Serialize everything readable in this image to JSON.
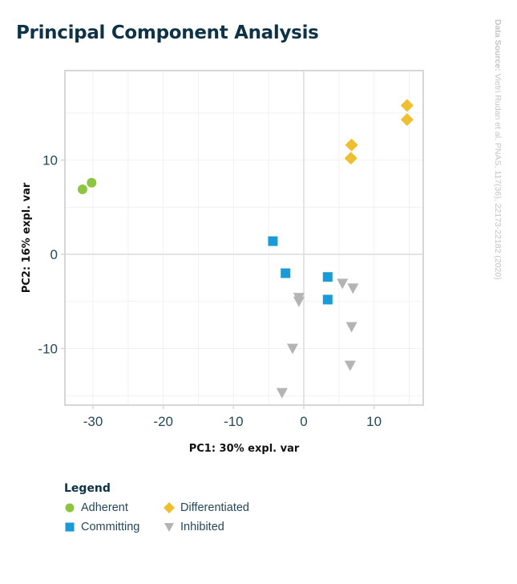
{
  "title": "Principal Component Analysis",
  "source": {
    "label": "Data Source:",
    "text": "Vietri Rudan et al. PNAS, 117(36), 22173-22182 (2020)"
  },
  "legend": {
    "title": "Legend",
    "items": [
      {
        "name": "Adherent",
        "color": "#8cc63f",
        "marker": "circle-icon"
      },
      {
        "name": "Differentiated",
        "color": "#f0bf2f",
        "marker": "diamond-icon"
      },
      {
        "name": "Committing",
        "color": "#1a9bd7",
        "marker": "square-icon"
      },
      {
        "name": "Inhibited",
        "color": "#b4b4b4",
        "marker": "triangle-down-icon"
      }
    ]
  },
  "chart_data": {
    "type": "scatter",
    "title": "Principal Component Analysis",
    "xlabel": "PC1: 30% expl. var",
    "ylabel": "PC2: 16% expl. var",
    "xlim": [
      -34,
      17
    ],
    "ylim": [
      -16,
      19.5
    ],
    "xticks": [
      -30,
      -20,
      -10,
      0,
      10
    ],
    "yticks": [
      -10,
      0,
      10
    ],
    "grid": true,
    "series": [
      {
        "name": "Adherent",
        "color": "#8cc63f",
        "marker": "circle",
        "points": [
          [
            -31.5,
            6.9
          ],
          [
            -30.2,
            7.6
          ]
        ]
      },
      {
        "name": "Committing",
        "color": "#1a9bd7",
        "marker": "square",
        "points": [
          [
            -4.4,
            1.4
          ],
          [
            -2.6,
            -2.0
          ],
          [
            3.4,
            -2.4
          ],
          [
            3.4,
            -4.8
          ]
        ]
      },
      {
        "name": "Differentiated",
        "color": "#f0bf2f",
        "marker": "diamond",
        "points": [
          [
            14.7,
            15.8
          ],
          [
            14.7,
            14.3
          ],
          [
            6.8,
            11.6
          ],
          [
            6.7,
            10.2
          ]
        ]
      },
      {
        "name": "Inhibited",
        "color": "#b4b4b4",
        "marker": "triangle-down",
        "points": [
          [
            -0.7,
            -4.6
          ],
          [
            -0.7,
            -5.0
          ],
          [
            5.5,
            -3.1
          ],
          [
            7.0,
            -3.6
          ],
          [
            6.8,
            -7.7
          ],
          [
            -1.6,
            -10.0
          ],
          [
            6.6,
            -11.8
          ],
          [
            -3.1,
            -14.7
          ]
        ]
      }
    ]
  }
}
